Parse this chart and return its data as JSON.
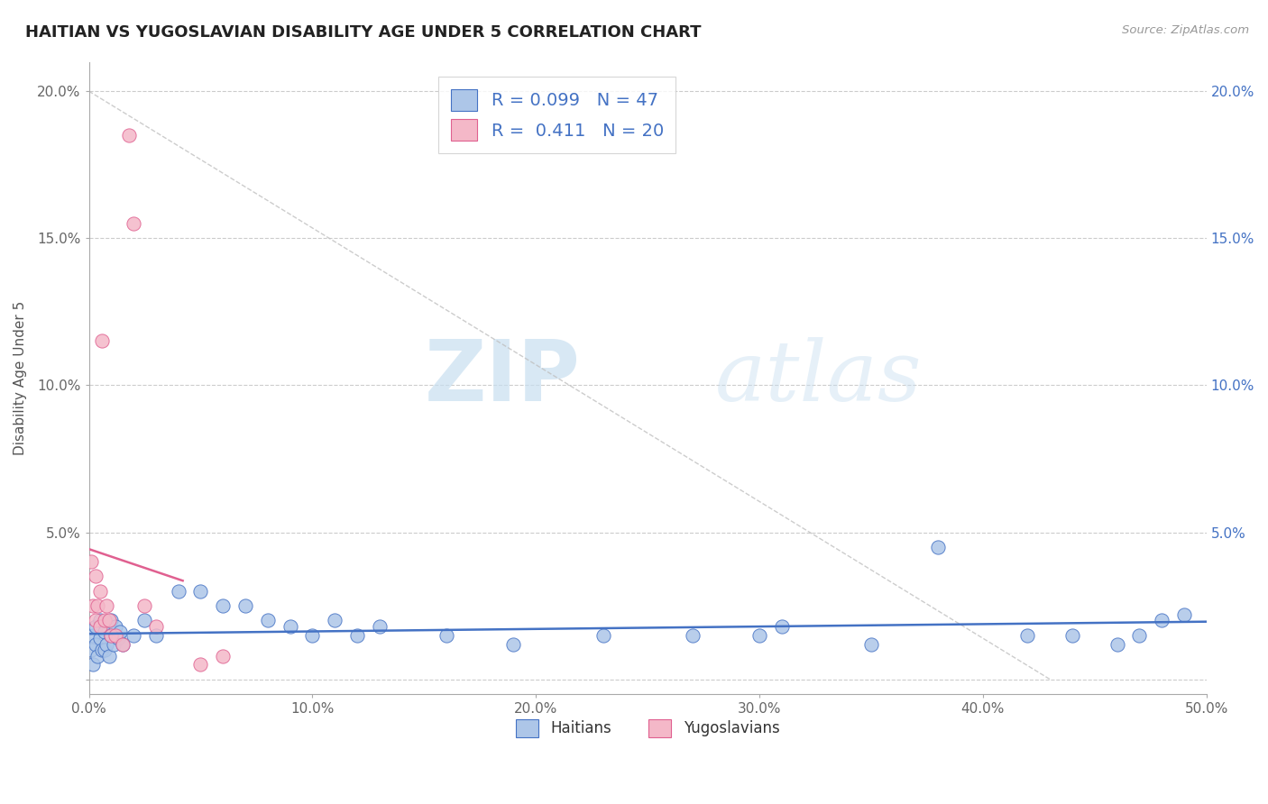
{
  "title": "HAITIAN VS YUGOSLAVIAN DISABILITY AGE UNDER 5 CORRELATION CHART",
  "source": "Source: ZipAtlas.com",
  "ylabel_label": "Disability Age Under 5",
  "xlim": [
    0.0,
    0.5
  ],
  "ylim": [
    -0.005,
    0.21
  ],
  "xticks": [
    0.0,
    0.1,
    0.2,
    0.3,
    0.4,
    0.5
  ],
  "yticks": [
    0.0,
    0.05,
    0.1,
    0.15,
    0.2
  ],
  "xticklabels": [
    "0.0%",
    "10.0%",
    "20.0%",
    "30.0%",
    "40.0%",
    "50.0%"
  ],
  "yticklabels": [
    "",
    "5.0%",
    "10.0%",
    "15.0%",
    "20.0%"
  ],
  "watermark_zip": "ZIP",
  "watermark_atlas": "atlas",
  "legend_haitians": "Haitians",
  "legend_yugoslavians": "Yugoslavians",
  "R_haitian": 0.099,
  "N_haitian": 47,
  "R_yugoslav": 0.411,
  "N_yugoslav": 20,
  "haitian_color": "#adc6e8",
  "yugoslav_color": "#f4b8c8",
  "haitian_edge_color": "#4472c4",
  "yugoslav_edge_color": "#e06090",
  "haitian_line_color": "#4472c4",
  "yugoslav_line_color": "#e06090",
  "background_color": "#ffffff",
  "grid_color": "#cccccc",
  "haitian_x": [
    0.001,
    0.002,
    0.002,
    0.003,
    0.003,
    0.004,
    0.005,
    0.005,
    0.006,
    0.007,
    0.007,
    0.008,
    0.009,
    0.01,
    0.01,
    0.011,
    0.012,
    0.013,
    0.014,
    0.015,
    0.02,
    0.025,
    0.03,
    0.04,
    0.05,
    0.06,
    0.07,
    0.08,
    0.09,
    0.1,
    0.11,
    0.12,
    0.13,
    0.16,
    0.19,
    0.23,
    0.27,
    0.31,
    0.38,
    0.42,
    0.44,
    0.46,
    0.47,
    0.48,
    0.49,
    0.3,
    0.35
  ],
  "haitian_y": [
    0.01,
    0.015,
    0.005,
    0.012,
    0.018,
    0.008,
    0.014,
    0.02,
    0.01,
    0.016,
    0.01,
    0.012,
    0.008,
    0.015,
    0.02,
    0.012,
    0.018,
    0.014,
    0.016,
    0.012,
    0.015,
    0.02,
    0.015,
    0.03,
    0.03,
    0.025,
    0.025,
    0.02,
    0.018,
    0.015,
    0.02,
    0.015,
    0.018,
    0.015,
    0.012,
    0.015,
    0.015,
    0.018,
    0.045,
    0.015,
    0.015,
    0.012,
    0.015,
    0.02,
    0.022,
    0.015,
    0.012
  ],
  "yugoslav_x": [
    0.001,
    0.002,
    0.003,
    0.003,
    0.004,
    0.005,
    0.005,
    0.006,
    0.007,
    0.008,
    0.009,
    0.01,
    0.012,
    0.015,
    0.018,
    0.02,
    0.025,
    0.03,
    0.05,
    0.06
  ],
  "yugoslav_y": [
    0.04,
    0.025,
    0.02,
    0.035,
    0.025,
    0.018,
    0.03,
    0.115,
    0.02,
    0.025,
    0.02,
    0.015,
    0.015,
    0.012,
    0.185,
    0.155,
    0.025,
    0.018,
    0.005,
    0.008
  ],
  "dash_line_x": [
    0.0,
    0.43
  ],
  "dash_line_y": [
    0.2,
    0.0
  ]
}
